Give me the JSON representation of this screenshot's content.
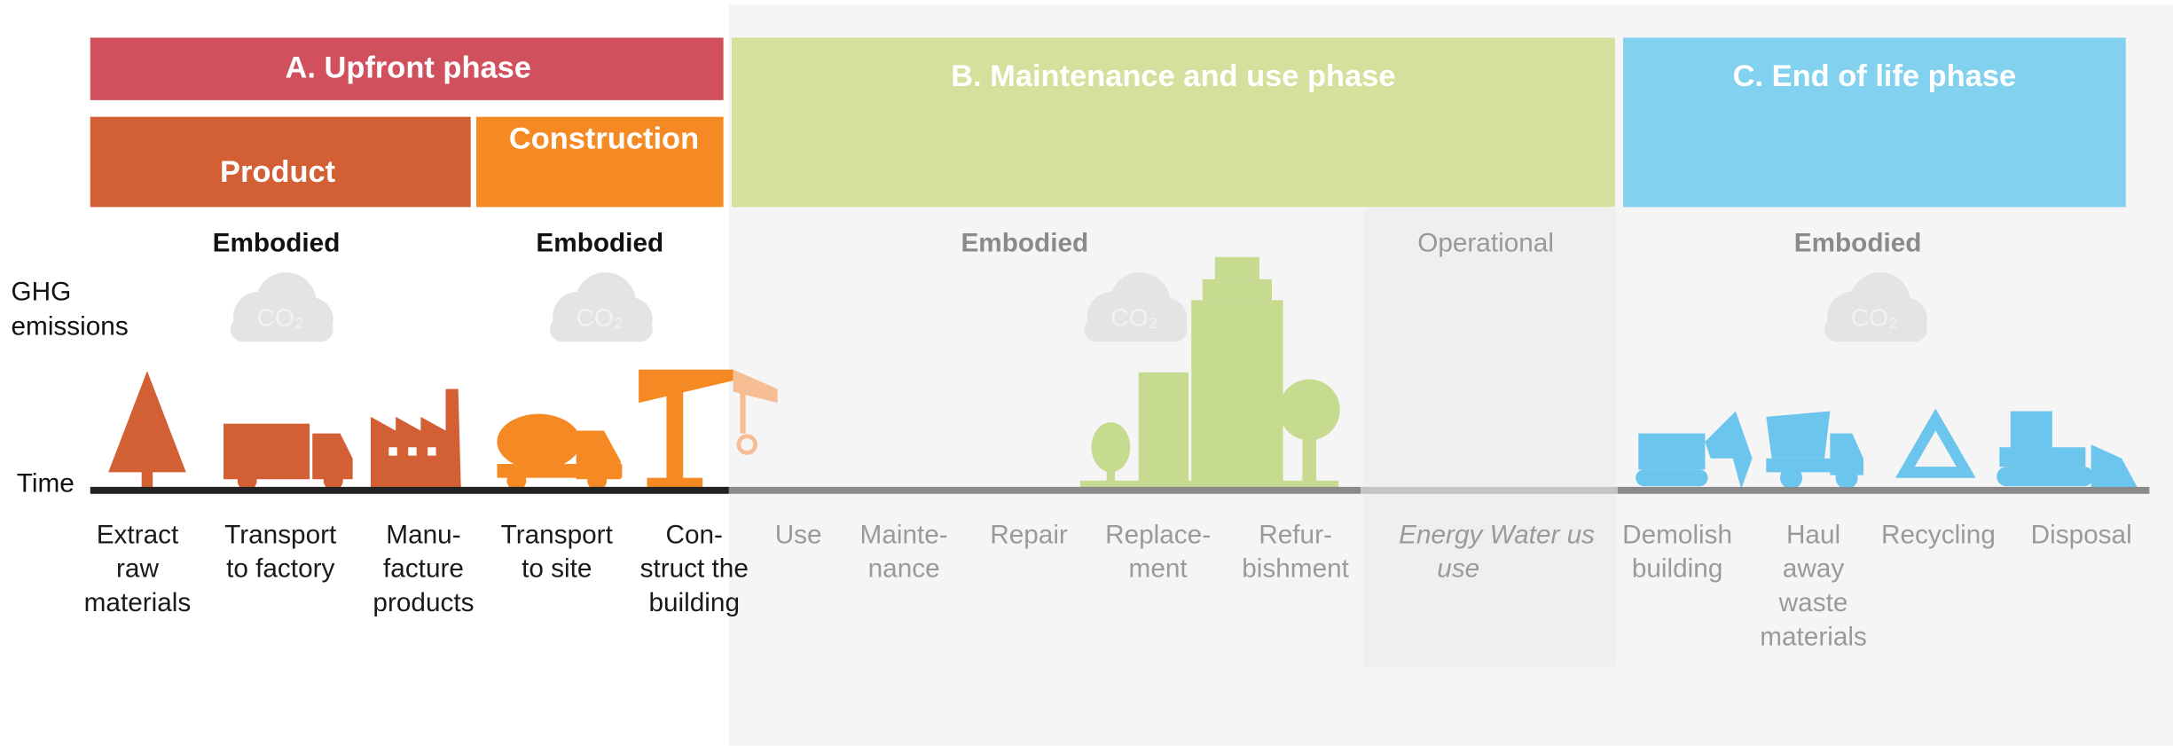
{
  "phases": {
    "upfront": "A. Upfront phase",
    "maintenance": "B. Maintenance and use phase",
    "end_of_life": "C. End of life phase"
  },
  "subphases": {
    "product": "Product",
    "construction": "Construction"
  },
  "emission_types": [
    "Embodied",
    "Embodied",
    "Embodied",
    "Operational",
    "Embodied"
  ],
  "cloud_label": "CO₂",
  "axis": {
    "emissions": [
      "GHG",
      "emissions"
    ],
    "time": "Time"
  },
  "stages": [
    {
      "lines": [
        "Extract",
        "raw",
        "materials"
      ]
    },
    {
      "lines": [
        "Transport",
        "to factory"
      ]
    },
    {
      "lines": [
        "Manu-",
        "facture",
        "products"
      ]
    },
    {
      "lines": [
        "Transport",
        "to site"
      ]
    },
    {
      "lines": [
        "Con-",
        "struct the",
        "building"
      ]
    },
    {
      "lines": [
        "Use"
      ]
    },
    {
      "lines": [
        "Mainte-",
        "nance"
      ]
    },
    {
      "lines": [
        "Repair"
      ]
    },
    {
      "lines": [
        "Replace-",
        "ment"
      ]
    },
    {
      "lines": [
        "Refur-",
        "bishment"
      ]
    },
    {
      "lines": [
        "Energy Water us",
        "use"
      ]
    },
    {
      "lines": [
        "Demolish",
        "building"
      ]
    },
    {
      "lines": [
        "Haul",
        "away",
        "waste",
        "materials"
      ]
    },
    {
      "lines": [
        "Recycling"
      ]
    },
    {
      "lines": [
        "Disposal"
      ]
    }
  ]
}
